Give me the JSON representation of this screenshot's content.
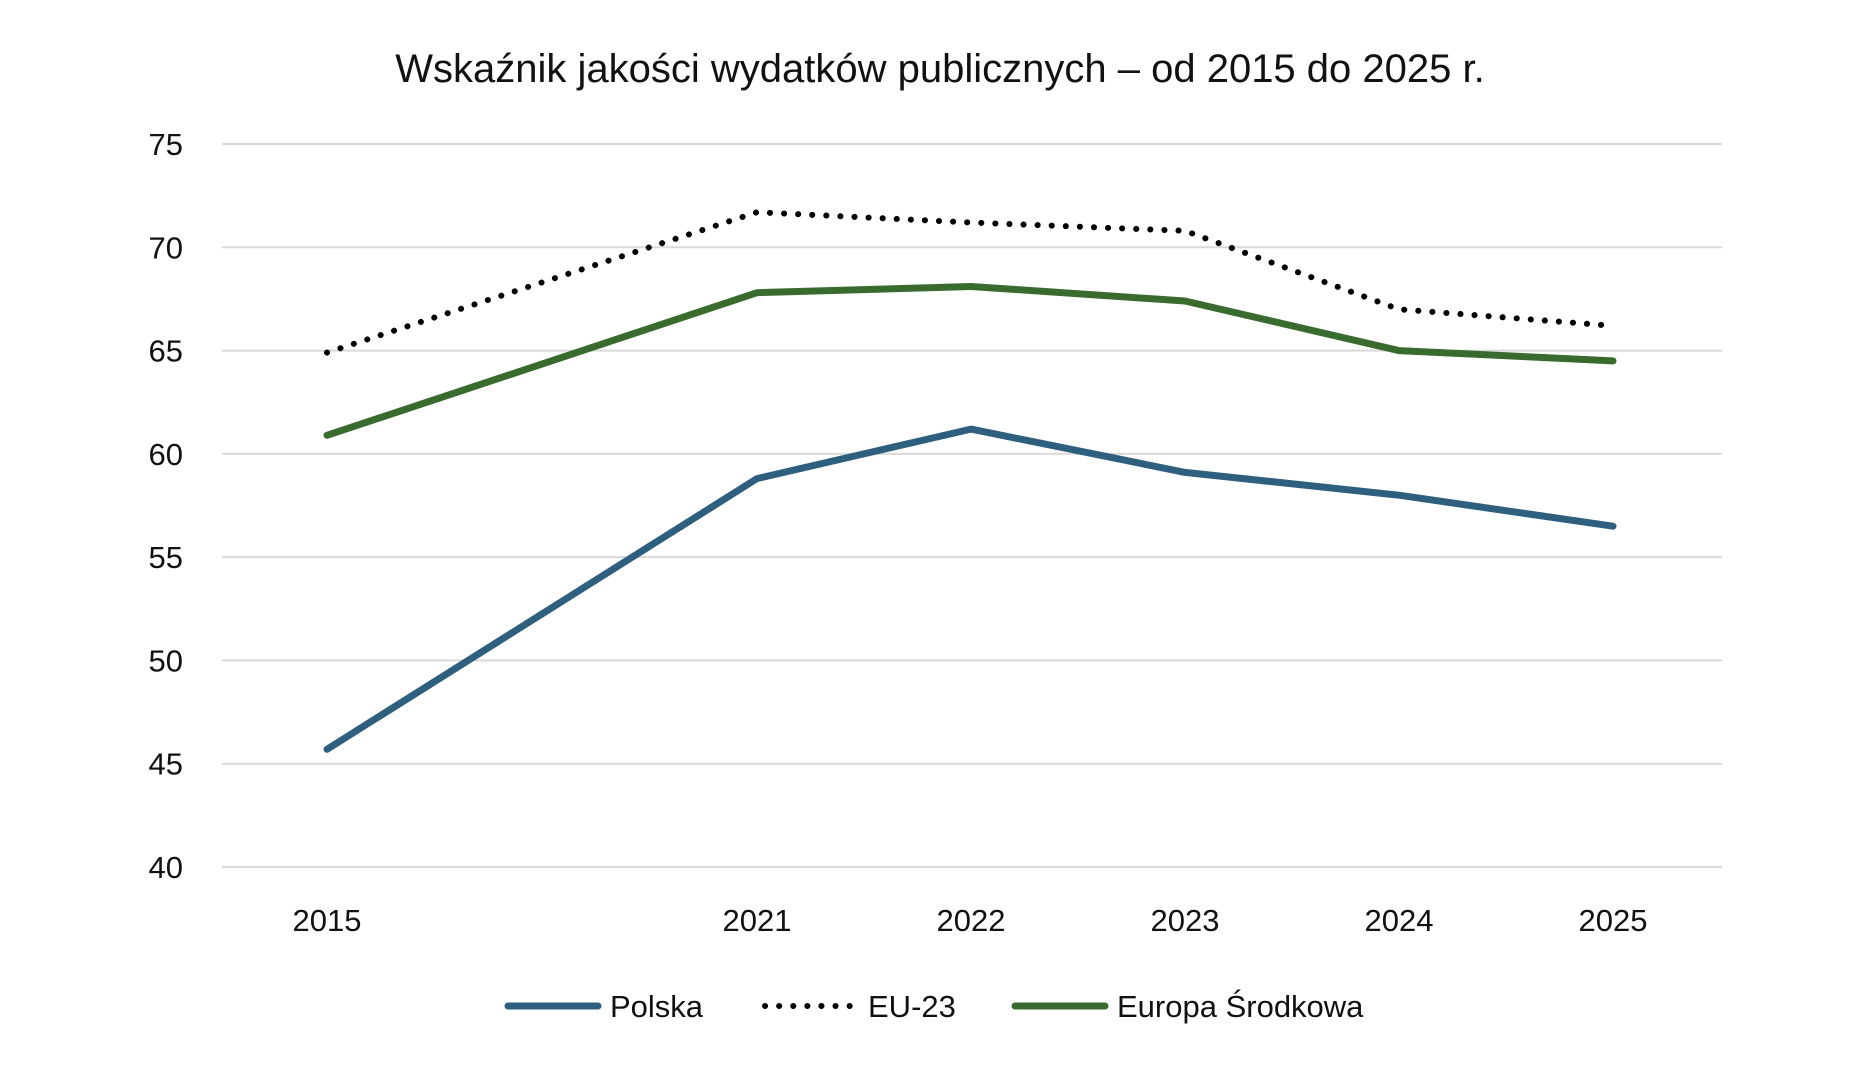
{
  "chart_data": {
    "type": "line",
    "title": "Wskaźnik jakości wydatków publicznych – od 2015 do 2025 r.",
    "xlabel": "",
    "ylabel": "",
    "categories": [
      "2015",
      "2021",
      "2022",
      "2023",
      "2024",
      "2025"
    ],
    "ylim": [
      40,
      75
    ],
    "yticks": [
      40,
      45,
      50,
      55,
      60,
      65,
      70,
      75
    ],
    "grid": true,
    "legend_position": "bottom",
    "series": [
      {
        "name": "Polska",
        "values": [
          45.7,
          58.8,
          61.2,
          59.1,
          58.0,
          56.5
        ],
        "color": "#2e5f7f",
        "style": "solid"
      },
      {
        "name": "EU-23",
        "values": [
          64.9,
          71.7,
          71.2,
          70.8,
          67.0,
          66.2
        ],
        "color": "#000000",
        "style": "dotted"
      },
      {
        "name": "Europa Środkowa",
        "values": [
          60.9,
          67.8,
          68.1,
          67.4,
          65.0,
          64.5
        ],
        "color": "#3a6b2e",
        "style": "solid"
      }
    ]
  }
}
